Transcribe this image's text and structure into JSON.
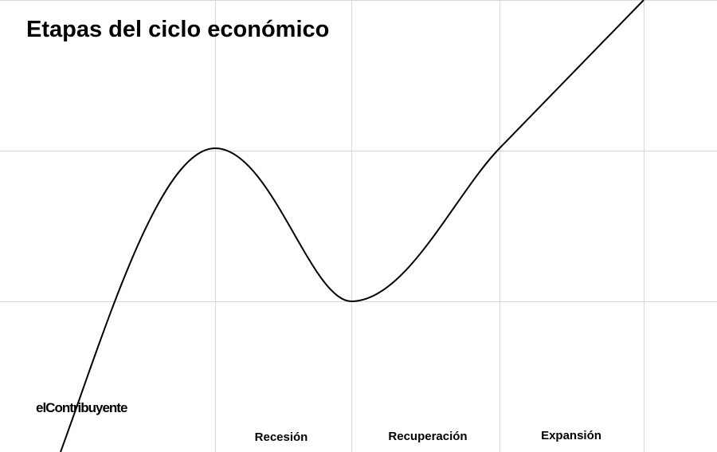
{
  "header": {
    "title": "Etapas del ciclo económico"
  },
  "stages": [
    "Recesión",
    "Recuperación",
    "Expansión"
  ],
  "logo": "elContribuyente"
}
